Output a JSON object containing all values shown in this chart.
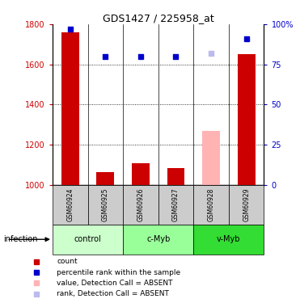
{
  "title": "GDS1427 / 225958_at",
  "samples": [
    "GSM60924",
    "GSM60925",
    "GSM60926",
    "GSM60927",
    "GSM60928",
    "GSM60929"
  ],
  "groups": [
    {
      "label": "control",
      "samples": [
        "GSM60924",
        "GSM60925"
      ],
      "color": "#ccffcc"
    },
    {
      "label": "c-Myb",
      "samples": [
        "GSM60926",
        "GSM60927"
      ],
      "color": "#99ff99"
    },
    {
      "label": "v-Myb",
      "samples": [
        "GSM60928",
        "GSM60929"
      ],
      "color": "#33dd33"
    }
  ],
  "bar_values": [
    1760,
    1065,
    1107,
    1082,
    1270,
    1650
  ],
  "bar_colors": [
    "#cc0000",
    "#cc0000",
    "#cc0000",
    "#cc0000",
    "#ffb3b3",
    "#cc0000"
  ],
  "rank_values": [
    97,
    80,
    80,
    80,
    null,
    91
  ],
  "rank_colors": [
    "#0000cc",
    "#0000cc",
    "#0000cc",
    "#0000cc",
    null,
    "#0000cc"
  ],
  "absent_rank": [
    null,
    null,
    null,
    null,
    82,
    null
  ],
  "ylim_left": [
    1000,
    1800
  ],
  "ylim_right": [
    0,
    100
  ],
  "yticks_left": [
    1000,
    1200,
    1400,
    1600,
    1800
  ],
  "yticks_right": [
    0,
    25,
    50,
    75,
    100
  ],
  "ytick_labels_right": [
    "0",
    "25",
    "50",
    "75",
    "100%"
  ],
  "ylabel_left_color": "#cc0000",
  "ylabel_right_color": "#0000cc",
  "infection_label": "infection",
  "legend_items": [
    {
      "color": "#cc0000",
      "label": "count"
    },
    {
      "color": "#0000cc",
      "label": "percentile rank within the sample"
    },
    {
      "color": "#ffb3b3",
      "label": "value, Detection Call = ABSENT"
    },
    {
      "color": "#bbbbee",
      "label": "rank, Detection Call = ABSENT"
    }
  ],
  "bar_width": 0.5,
  "sample_box_color": "#cccccc",
  "grid_color": "#000000",
  "absent_rank_color": "#bbbbee"
}
